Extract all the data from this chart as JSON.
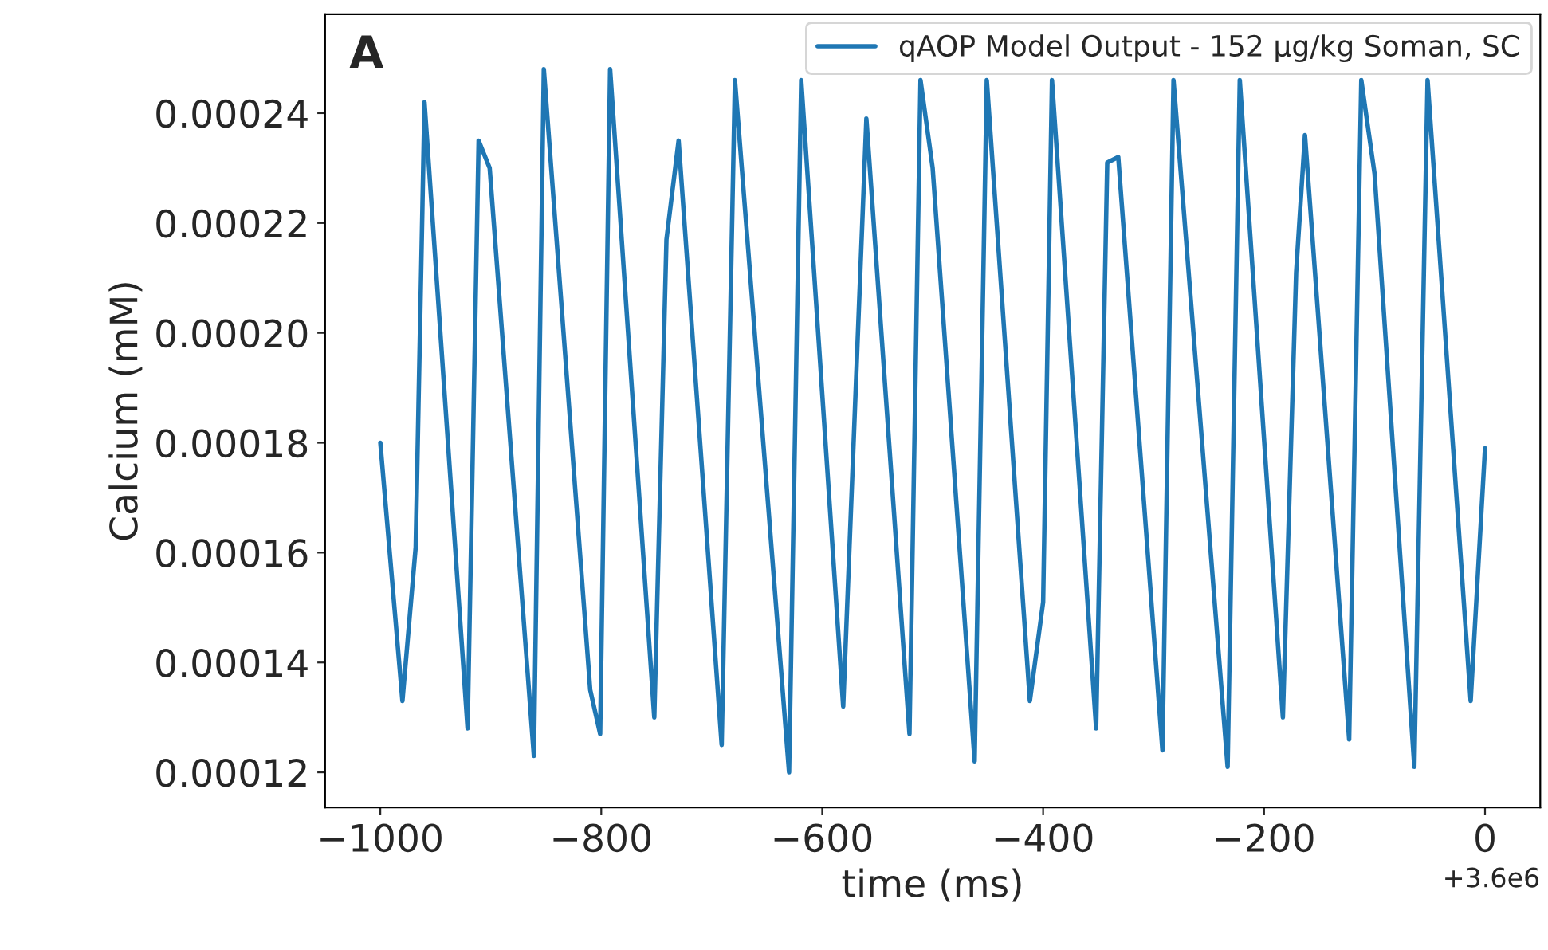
{
  "chart_data": {
    "type": "line",
    "xlabel": "time (ms)",
    "ylabel": "Calcium (mM)",
    "annotations": [
      "A",
      "+3.6e6"
    ],
    "x": [
      -1000,
      -980,
      -968,
      -960,
      -921,
      -911,
      -901,
      -861,
      -852,
      -810,
      -801,
      -792,
      -752,
      -741,
      -730,
      -691,
      -679,
      -630,
      -619,
      -581,
      -560,
      -521,
      -511,
      -500,
      -462,
      -451,
      -412,
      -400,
      -392,
      -352,
      -342,
      -332,
      -292,
      -282,
      -233,
      -222,
      -183,
      -171,
      -163,
      -123,
      -112,
      -100,
      -64,
      -52,
      -13,
      0
    ],
    "series": [
      {
        "name": "qAOP Model Output - 152 µg/kg Soman, SC",
        "color": "#1f77b4",
        "values": [
          0.00018,
          0.000133,
          0.000161,
          0.000242,
          0.000128,
          0.000235,
          0.00023,
          0.000123,
          0.000248,
          0.000135,
          0.000127,
          0.000248,
          0.00013,
          0.000217,
          0.000235,
          0.000125,
          0.000246,
          0.00012,
          0.000246,
          0.000132,
          0.000239,
          0.000127,
          0.000246,
          0.00023,
          0.000122,
          0.000246,
          0.000133,
          0.000151,
          0.000246,
          0.000128,
          0.000231,
          0.000232,
          0.000124,
          0.000246,
          0.000121,
          0.000246,
          0.00013,
          0.000211,
          0.000236,
          0.000126,
          0.000246,
          0.000229,
          0.000121,
          0.000246,
          0.000133,
          0.000179
        ]
      }
    ],
    "xlim": [
      -1050,
      50
    ],
    "xticks": [
      {
        "value": -1000,
        "label": "−1000"
      },
      {
        "value": -800,
        "label": "−800"
      },
      {
        "value": -600,
        "label": "−600"
      },
      {
        "value": -400,
        "label": "−400"
      },
      {
        "value": -200,
        "label": "−200"
      },
      0
    ],
    "ylim": [
      0.0001136,
      0.000258
    ],
    "yticks": [
      {
        "value": 0.00012,
        "label": "0.00012"
      },
      {
        "value": 0.00014,
        "label": "0.00014"
      },
      {
        "value": 0.00016,
        "label": "0.00016"
      },
      {
        "value": 0.00018,
        "label": "0.00018"
      },
      {
        "value": 0.0002,
        "label": "0.00020"
      },
      {
        "value": 0.00022,
        "label": "0.00022"
      },
      {
        "value": 0.00024,
        "label": "0.00024"
      }
    ],
    "grid": false,
    "legend": "top right",
    "marker": "none",
    "line_style": "solid"
  }
}
